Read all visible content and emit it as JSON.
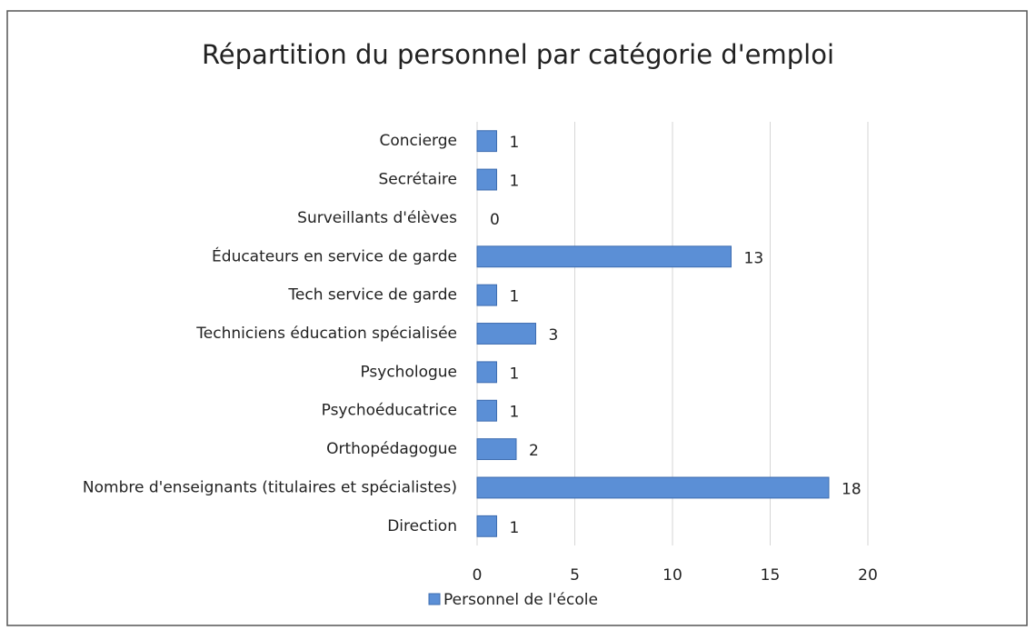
{
  "chart_data": {
    "type": "hbar",
    "title": "Répartition du personnel par catégorie d'emploi",
    "categories": [
      "Concierge",
      "Secrétaire",
      "Surveillants d'élèves",
      "Éducateurs en service de garde",
      "Tech service de garde",
      "Techniciens éducation spécialisée",
      "Psychologue",
      "Psychoéducatrice",
      "Orthopédagogue",
      "Nombre d'enseignants (titulaires et spécialistes)",
      "Direction"
    ],
    "series": [
      {
        "name": "Personnel de l'école",
        "color": "#5b8fd6",
        "values": [
          1,
          1,
          0,
          13,
          1,
          3,
          1,
          1,
          2,
          18,
          1
        ]
      }
    ],
    "xlim": [
      0,
      20
    ],
    "xticks": [
      0,
      5,
      10,
      15,
      20
    ],
    "grid": true,
    "legend": "bottom"
  }
}
